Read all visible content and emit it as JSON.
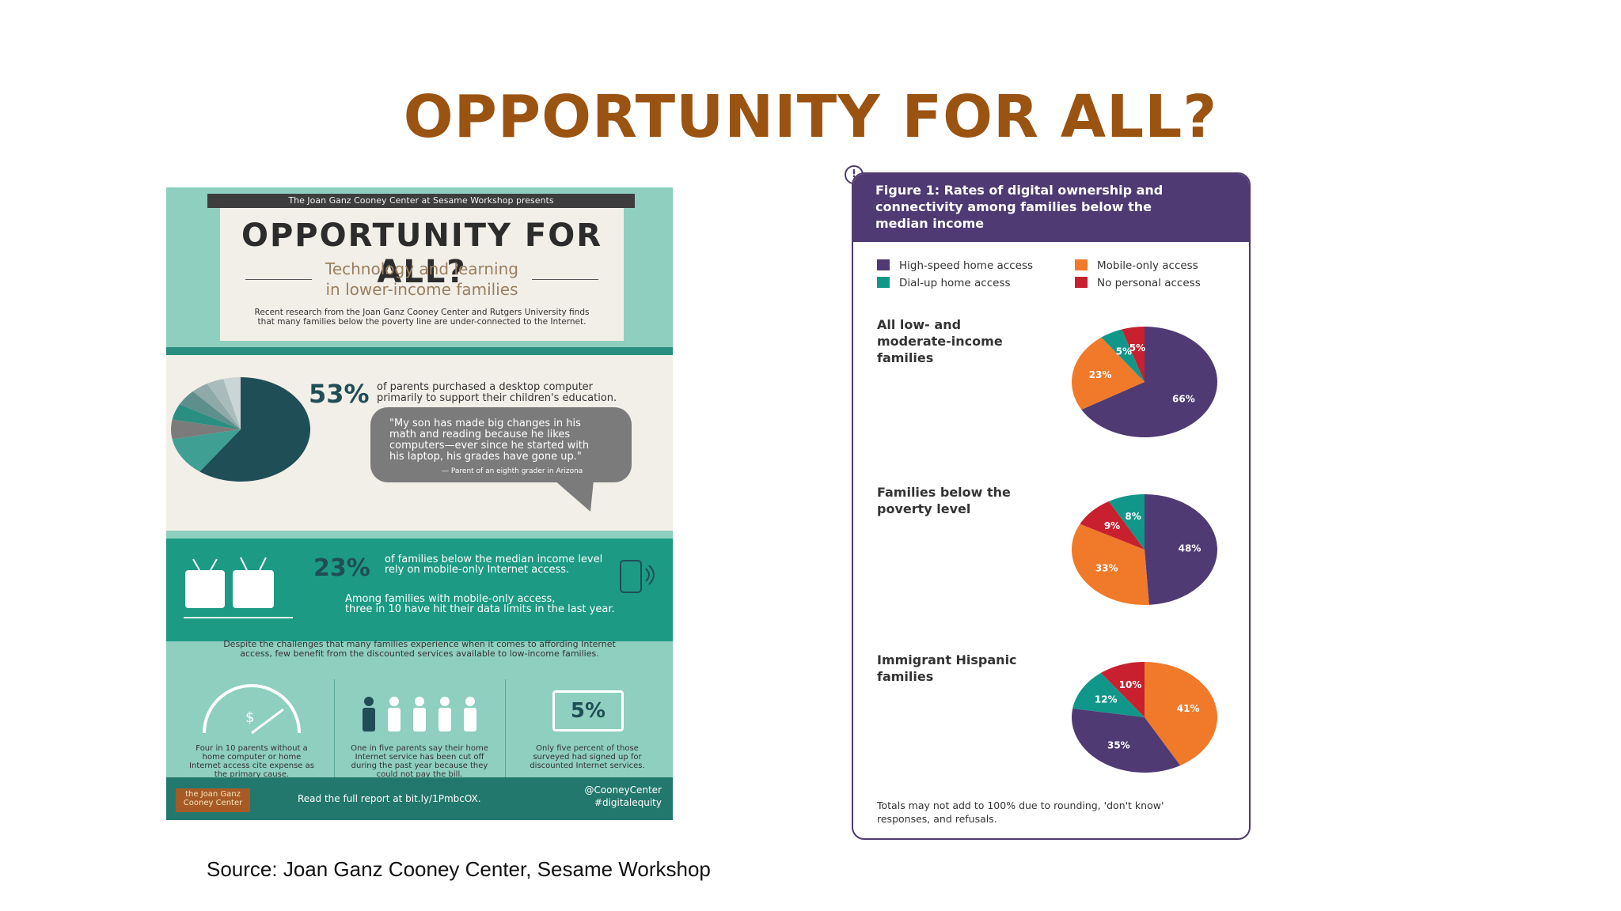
{
  "slide": {
    "title": "OPPORTUNITY FOR ALL?",
    "source": "Source: Joan Ganz Cooney Center, Sesame Workshop"
  },
  "infographic": {
    "banner": "The Joan Ganz Cooney Center at Sesame Workshop presents",
    "title": "OPPORTUNITY FOR ALL?",
    "subtitle": "Technology and learning\nin lower-income families",
    "intro": "Recent research from the Joan Ganz Cooney Center and Rutgers University finds\nthat many families below the poverty line are under-connected to the Internet.",
    "stat_desktop": {
      "value": "53%",
      "text": "of parents purchased a desktop computer\nprimarily to support their children's education."
    },
    "quote": "\"My son has made big changes in his\nmath and reading because he likes\ncomputers—ever since he started with\nhis laptop, his grades have gone up.\"",
    "quote_attribution": "— Parent of an eighth grader in Arizona",
    "stat_mobile": {
      "value": "23%",
      "text": "of families below the median income level\nrely on mobile-only Internet access."
    },
    "mobile_limits": "Among families with mobile-only access,\nthree in 10 have hit their data limits in the last year.",
    "challenges": "Despite the challenges that many families experience when it comes to affording Internet\naccess, few benefit from the discounted services available to low-income families.",
    "col1_caption": "Four in 10 parents without a\nhome computer or home\nInternet access cite expense as\nthe primary cause.",
    "col2_caption": "One in five parents say their home\nInternet service has been cut off\nduring the past year because they\ncould not pay the bill.",
    "col3_value": "5%",
    "col3_caption": "Only five percent of those\nsurveyed had signed up for\ndiscounted Internet services.",
    "footer_logo": "the Joan Ganz\nCooney Center",
    "footer_read": "Read the full report at bit.ly/1PmbcOX.",
    "footer_social": "@CooneyCenter\n#digitalequity",
    "desktop_pie": [
      60,
      12,
      6,
      5,
      5,
      4,
      4,
      4
    ],
    "colors": {
      "teal_dark": "#1f4e56",
      "teal": "#1d9a84",
      "mint": "#8ecfbf",
      "cream": "#f2efe8",
      "gray": "#7b7b7b"
    }
  },
  "figure": {
    "badge": "!",
    "title": "Figure 1: Rates of digital ownership and\nconnectivity among families below the\nmedian income",
    "legend": [
      {
        "label": "High-speed home access",
        "color": "#4f3a74"
      },
      {
        "label": "Mobile-only access",
        "color": "#f07a2a"
      },
      {
        "label": "Dial-up home access",
        "color": "#11978a"
      },
      {
        "label": "No personal access",
        "color": "#c8202f"
      }
    ],
    "note": "Totals may not add to 100% due to rounding, 'don't know'\nresponses, and refusals."
  },
  "chart_data": [
    {
      "type": "pie",
      "title": "All low- and\nmoderate-income\nfamilies",
      "categories": [
        "High-speed home access",
        "Mobile-only access",
        "Dial-up home access",
        "No personal access"
      ],
      "values": [
        66,
        23,
        5,
        5
      ],
      "labels": [
        "66%",
        "23%",
        "5%",
        "5%"
      ]
    },
    {
      "type": "pie",
      "title": "Families below the\npoverty level",
      "categories": [
        "High-speed home access",
        "Mobile-only access",
        "No personal access",
        "Dial-up home access"
      ],
      "values": [
        48,
        33,
        9,
        8
      ],
      "labels": [
        "48%",
        "33%",
        "9%",
        "8%"
      ]
    },
    {
      "type": "pie",
      "title": "Immigrant Hispanic\nfamilies",
      "categories": [
        "Mobile-only access",
        "High-speed home access",
        "Dial-up home access",
        "No personal access"
      ],
      "values": [
        41,
        35,
        12,
        10
      ],
      "labels": [
        "41%",
        "35%",
        "12%",
        "10%"
      ]
    }
  ]
}
